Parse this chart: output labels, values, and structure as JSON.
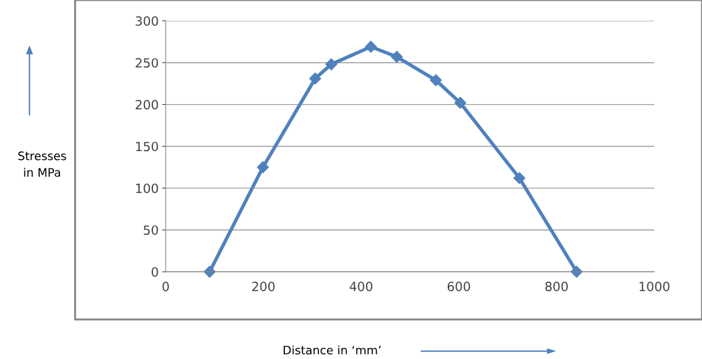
{
  "chart_data": {
    "type": "line",
    "xlabel": "Distance in ‘mm’",
    "annotations": [
      "Stresses\nin MPa"
    ],
    "x": [
      90,
      199,
      306,
      339,
      420,
      473,
      553,
      603,
      724,
      841
    ],
    "series": [
      {
        "color": "#4f81bd",
        "values": [
          0,
          125,
          231,
          248,
          269,
          257,
          229,
          202,
          112,
          0
        ]
      }
    ],
    "xlim": [
      0,
      1000
    ],
    "xticks": [
      0,
      200,
      400,
      600,
      800,
      1000
    ],
    "ylim": [
      0,
      300
    ],
    "yticks": [
      0,
      50,
      100,
      150,
      200,
      250,
      300
    ],
    "grid": "y",
    "legend": false,
    "marker": "diamond",
    "line_style": "solid"
  }
}
